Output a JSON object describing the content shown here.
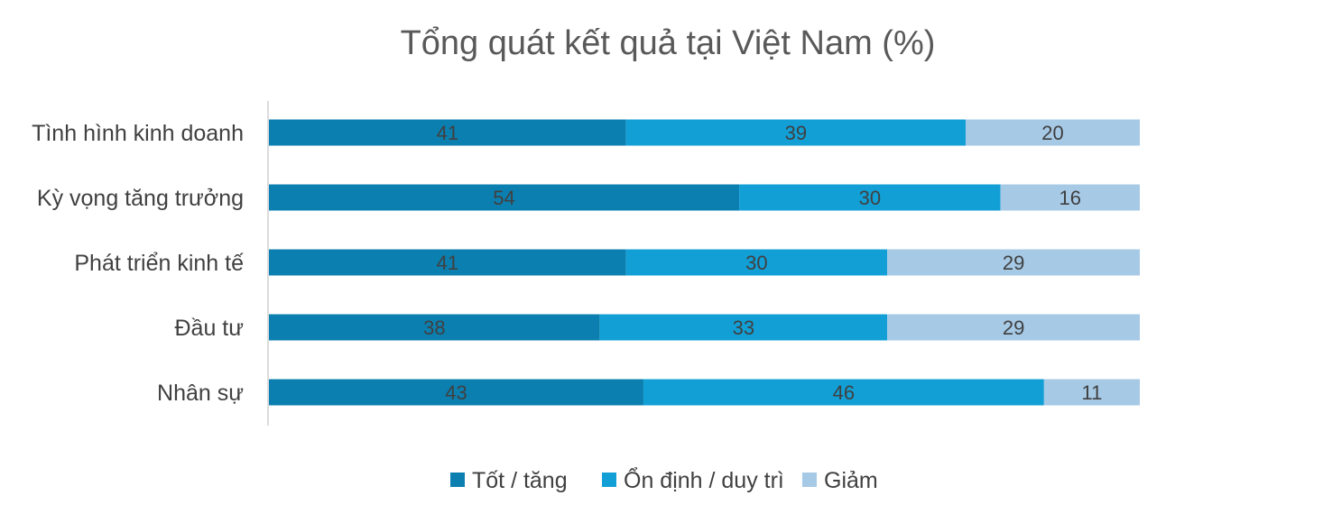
{
  "chart_data": {
    "type": "bar",
    "orientation": "horizontal",
    "stacked": true,
    "title": "Tổng quát kết quả tại Việt Nam (%)",
    "categories": [
      "Tình hình kinh doanh",
      "Kỳ vọng tăng trưởng",
      "Phát triển kinh tế",
      "Đầu tư",
      "Nhân sự"
    ],
    "series": [
      {
        "name": "Tốt / tăng",
        "color": "#0b7fb0",
        "values": [
          41,
          54,
          41,
          38,
          43
        ]
      },
      {
        "name": "Ổn định / duy trì",
        "color": "#119fd6",
        "values": [
          39,
          30,
          30,
          33,
          46
        ]
      },
      {
        "name": "Giảm",
        "color": "#a6c9e6",
        "values": [
          20,
          16,
          29,
          29,
          11
        ]
      }
    ],
    "xlim": [
      0,
      100
    ],
    "data_labels": true,
    "grid": false,
    "legend": "bottom"
  }
}
